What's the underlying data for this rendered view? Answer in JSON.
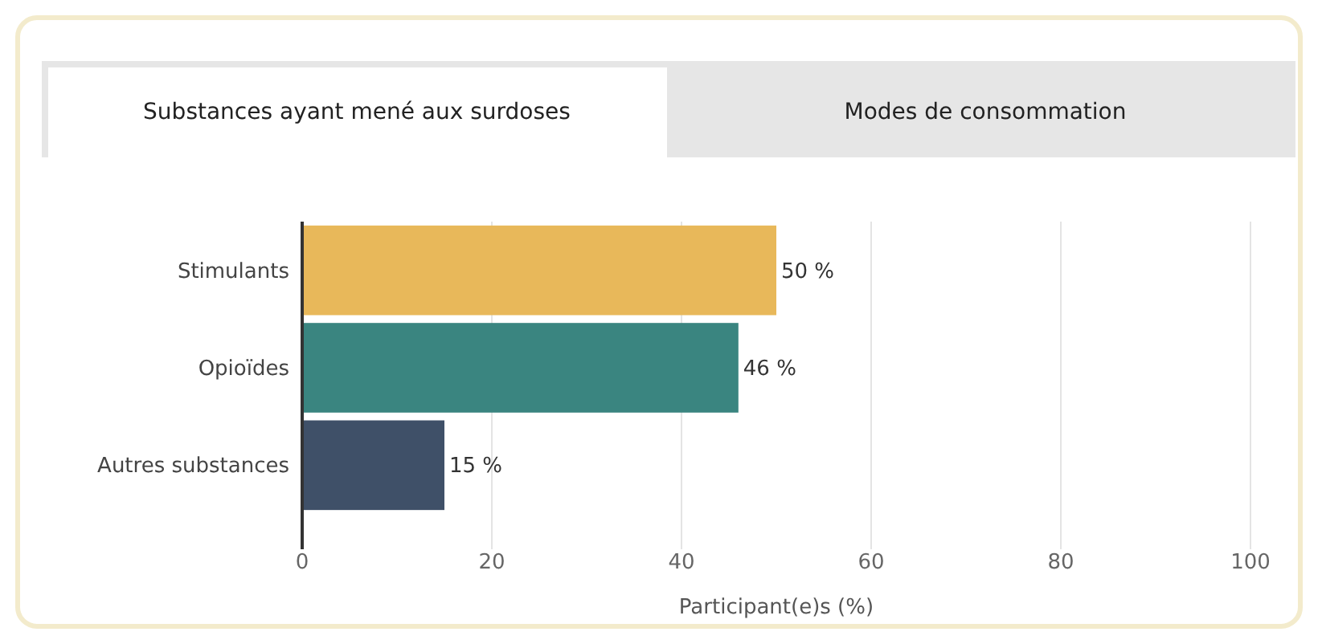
{
  "chart_data": {
    "type": "bar",
    "orientation": "horizontal",
    "title": "Substances ayant mené aux surdoses",
    "annotations": [
      "Modes de consommation"
    ],
    "categories": [
      "Stimulants",
      "Opioïdes",
      "Autres substances"
    ],
    "values": [
      50,
      46,
      15
    ],
    "colors": [
      "#e8b85a",
      "#3a8580",
      "#3f5068"
    ],
    "value_labels": [
      "50 %",
      "46 %",
      "15 %"
    ],
    "xlabel": "Participant(e)s (%)",
    "xlim": [
      0,
      100
    ],
    "xticks": [
      0,
      20,
      40,
      60,
      80,
      100
    ],
    "grid": "x"
  }
}
